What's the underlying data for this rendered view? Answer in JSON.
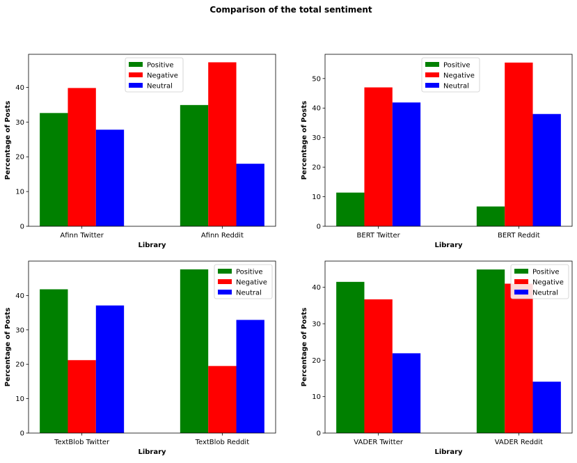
{
  "figure": {
    "title": "Comparison of the total sentiment"
  },
  "colors": {
    "Positive": "#008000",
    "Negative": "#ff0000",
    "Neutral": "#0000ff"
  },
  "chart_data": [
    {
      "type": "bar",
      "xlabel": "Library",
      "ylabel": "Percentage of Posts",
      "categories": [
        "Afinn Twitter",
        "Afinn Reddit"
      ],
      "series": [
        {
          "name": "Positive",
          "values": [
            32.6,
            34.9
          ]
        },
        {
          "name": "Negative",
          "values": [
            39.8,
            47.2
          ]
        },
        {
          "name": "Neutral",
          "values": [
            27.8,
            18.0
          ]
        }
      ],
      "ylim": [
        0,
        49.5
      ],
      "yticks": [
        0,
        10,
        20,
        30,
        40
      ],
      "legend": "upper-center"
    },
    {
      "type": "bar",
      "xlabel": "Library",
      "ylabel": "Percentage of Posts",
      "categories": [
        "BERT Twitter",
        "BERT Reddit"
      ],
      "series": [
        {
          "name": "Positive",
          "values": [
            11.4,
            6.7
          ]
        },
        {
          "name": "Negative",
          "values": [
            47.0,
            55.4
          ]
        },
        {
          "name": "Neutral",
          "values": [
            41.9,
            38.0
          ]
        }
      ],
      "ylim": [
        0,
        58.2
      ],
      "yticks": [
        0,
        10,
        20,
        30,
        40,
        50
      ],
      "legend": "upper-center"
    },
    {
      "type": "bar",
      "xlabel": "Library",
      "ylabel": "Percentage of Posts",
      "categories": [
        "TextBlob Twitter",
        "TextBlob Reddit"
      ],
      "series": [
        {
          "name": "Positive",
          "values": [
            41.8,
            47.6
          ]
        },
        {
          "name": "Negative",
          "values": [
            21.2,
            19.5
          ]
        },
        {
          "name": "Neutral",
          "values": [
            37.1,
            32.9
          ]
        }
      ],
      "ylim": [
        0,
        50.0
      ],
      "yticks": [
        0,
        10,
        20,
        30,
        40
      ],
      "legend": "upper-right"
    },
    {
      "type": "bar",
      "xlabel": "Library",
      "ylabel": "Percentage of Posts",
      "categories": [
        "VADER Twitter",
        "VADER Reddit"
      ],
      "series": [
        {
          "name": "Positive",
          "values": [
            41.5,
            44.9
          ]
        },
        {
          "name": "Negative",
          "values": [
            36.7,
            41.0
          ]
        },
        {
          "name": "Neutral",
          "values": [
            21.9,
            14.1
          ]
        }
      ],
      "ylim": [
        0,
        47.2
      ],
      "yticks": [
        0,
        10,
        20,
        30,
        40
      ],
      "legend": "upper-right"
    }
  ]
}
